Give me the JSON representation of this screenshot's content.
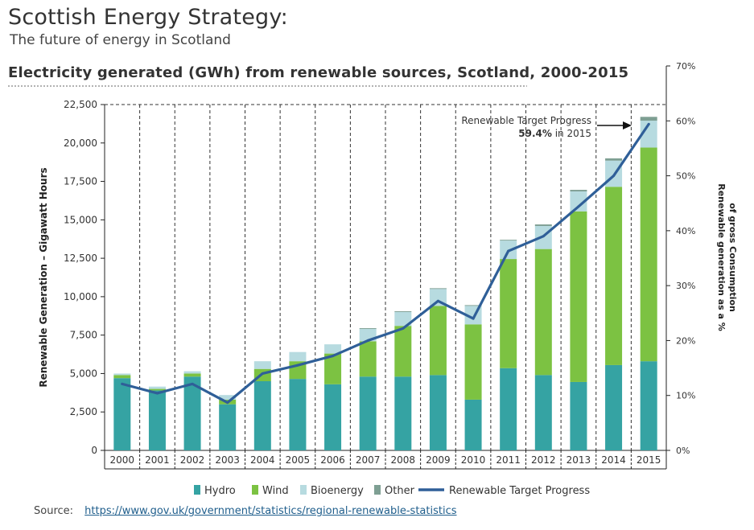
{
  "header": {
    "title": "Scottish Energy Strategy:",
    "subtitle": "The future of energy in Scotland"
  },
  "source": {
    "label": "Source:",
    "url_text": "https://www.gov.uk/government/statistics/regional-renewable-statistics"
  },
  "colors": {
    "hydro": "#35a3a3",
    "wind": "#7cc242",
    "bioenergy": "#b7dbe0",
    "other": "#7e9f93",
    "line": "#2f5f98"
  },
  "chart_data": {
    "type": "bar",
    "stacked": true,
    "title": "Electricity generated (GWh) from renewable sources, Scotland, 2000-2015",
    "ylabel": "Renewable Generation – Gigawatt Hours",
    "y2label_line1": "Renewable generation as a %",
    "y2label_line2": "of gross Consumption",
    "ylim": [
      0,
      22500
    ],
    "y_ticks": [
      "0",
      "2,500",
      "5,000",
      "7,500",
      "10,000",
      "12,500",
      "15,000",
      "17,500",
      "20,000",
      "22,500"
    ],
    "y2lim": [
      0,
      70
    ],
    "y2_ticks": [
      "0%",
      "10%",
      "20%",
      "30%",
      "40%",
      "50%",
      "60%",
      "70%"
    ],
    "grid": "vertical dashed",
    "legend_position": "bottom",
    "categories": [
      "2000",
      "2001",
      "2002",
      "2003",
      "2004",
      "2005",
      "2006",
      "2007",
      "2008",
      "2009",
      "2010",
      "2011",
      "2012",
      "2013",
      "2014",
      "2015"
    ],
    "series": [
      {
        "name": "Hydro",
        "values": [
          4700,
          3900,
          4800,
          3000,
          4500,
          4650,
          4300,
          4800,
          4800,
          4900,
          3300,
          5350,
          4900,
          4450,
          5550,
          5800
        ]
      },
      {
        "name": "Wind",
        "values": [
          200,
          100,
          200,
          300,
          800,
          1150,
          2000,
          2300,
          3300,
          4500,
          4900,
          7100,
          8200,
          11100,
          11600,
          13900
        ]
      },
      {
        "name": "Bioenergy",
        "values": [
          100,
          150,
          150,
          300,
          500,
          600,
          600,
          800,
          900,
          1100,
          1200,
          1200,
          1500,
          1300,
          1700,
          1750
        ]
      },
      {
        "name": "Other",
        "values": [
          0,
          0,
          0,
          0,
          0,
          0,
          0,
          50,
          50,
          50,
          50,
          50,
          100,
          100,
          150,
          250
        ]
      }
    ],
    "line_series": {
      "name": "Renewable Target Progress",
      "axis": "right",
      "unit": "%",
      "values": [
        12.1,
        10.4,
        12.1,
        8.7,
        14.0,
        15.5,
        17.2,
        20.0,
        22.2,
        27.2,
        24.0,
        36.3,
        39.0,
        44.4,
        50.0,
        59.4
      ]
    },
    "annotation": {
      "line1": "Renewable Target Progress",
      "bold": "59.4%",
      "rest": " in 2015"
    }
  }
}
